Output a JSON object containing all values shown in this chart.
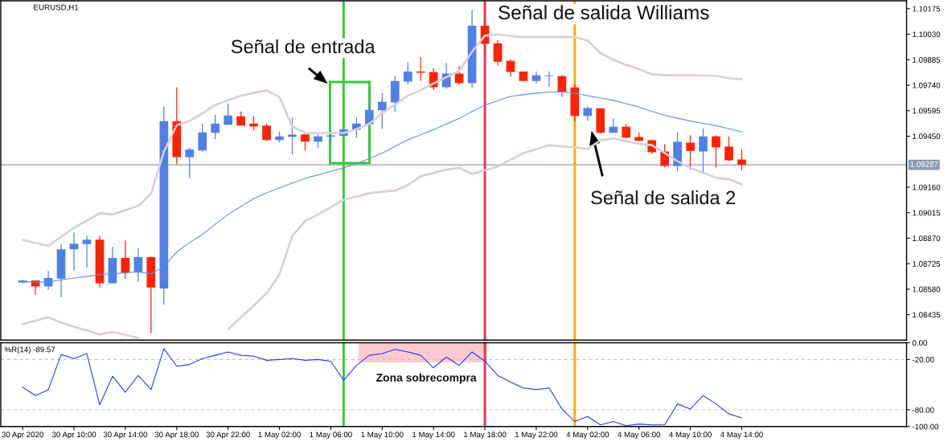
{
  "chart_data": [
    {
      "type": "candlestick",
      "title": "EURUSD,H1",
      "categories": [
        null,
        null,
        null,
        null,
        null,
        null,
        null,
        null,
        null,
        null,
        null,
        null,
        null,
        null,
        null,
        null,
        null,
        null,
        null,
        null,
        null,
        null,
        null,
        null,
        null,
        null,
        null,
        null,
        null,
        null,
        null,
        null,
        null,
        null,
        null,
        null,
        null,
        null,
        null,
        null,
        null,
        null,
        null,
        null,
        null,
        null,
        null,
        null,
        null,
        null,
        null,
        null,
        null,
        null,
        null,
        null,
        null
      ],
      "ohlc": [
        [
          1.08618,
          1.08633,
          1.08615,
          1.0863
        ],
        [
          1.0863,
          1.0863,
          1.08549,
          1.08595
        ],
        [
          1.08595,
          1.08683,
          1.08577,
          1.08643
        ],
        [
          1.0864,
          1.08835,
          1.08534,
          1.08807
        ],
        [
          1.08807,
          1.08903,
          1.08686,
          1.08839
        ],
        [
          1.08836,
          1.08883,
          1.08704,
          1.08862
        ],
        [
          1.08862,
          1.08883,
          1.0859,
          1.08613
        ],
        [
          1.08613,
          1.08822,
          1.08613,
          1.08757
        ],
        [
          1.08757,
          1.08857,
          1.0864,
          1.08674
        ],
        [
          1.08678,
          1.08812,
          1.08622,
          1.08762
        ],
        [
          1.08762,
          1.08766,
          1.08329,
          1.0859
        ],
        [
          1.08584,
          1.09618,
          1.08492,
          1.09536
        ],
        [
          1.09536,
          1.09727,
          1.0929,
          1.09331
        ],
        [
          1.09331,
          1.09384,
          1.0921,
          1.09374
        ],
        [
          1.09369,
          1.09522,
          1.0936,
          1.09472
        ],
        [
          1.09469,
          1.09572,
          1.09433,
          1.09522
        ],
        [
          1.09515,
          1.09636,
          1.09515,
          1.09568
        ],
        [
          1.09563,
          1.09591,
          1.0951,
          1.0951
        ],
        [
          1.09522,
          1.09563,
          1.09483,
          1.09506
        ],
        [
          1.0951,
          1.09522,
          1.09424,
          1.09428
        ],
        [
          1.09428,
          1.09477,
          1.09415,
          1.09449
        ],
        [
          1.09446,
          1.09559,
          1.09346,
          1.09459
        ],
        [
          1.0946,
          1.09472,
          1.09369,
          1.09419
        ],
        [
          1.09419,
          1.0946,
          1.09383,
          1.09449
        ],
        [
          1.09448,
          1.0946,
          1.09415,
          1.09455
        ],
        [
          1.09452,
          1.09493,
          1.09449,
          1.09489
        ],
        [
          1.09487,
          1.09556,
          1.09442,
          1.09522
        ],
        [
          1.09519,
          1.09645,
          1.09518,
          1.096
        ],
        [
          1.09597,
          1.09695,
          1.09492,
          1.09645
        ],
        [
          1.09642,
          1.09794,
          1.09588,
          1.09764
        ],
        [
          1.09761,
          1.0987,
          1.09744,
          1.09818
        ],
        [
          1.09818,
          1.099,
          1.09765,
          1.09811
        ],
        [
          1.09814,
          1.09837,
          1.09711,
          1.09729
        ],
        [
          1.09729,
          1.09867,
          1.0972,
          1.09806
        ],
        [
          1.09806,
          1.0985,
          1.09742,
          1.09752
        ],
        [
          1.09752,
          1.10169,
          1.09724,
          1.10078
        ],
        [
          1.10078,
          1.10082,
          1.09975,
          1.09975
        ],
        [
          1.09978,
          1.09996,
          1.09852,
          1.09874
        ],
        [
          1.09878,
          1.09888,
          1.09788,
          1.09815
        ],
        [
          1.09818,
          1.09818,
          1.09761,
          1.09764
        ],
        [
          1.09764,
          1.09818,
          1.09752,
          1.09796
        ],
        [
          1.09791,
          1.09818,
          1.09733,
          1.09796
        ],
        [
          1.09791,
          1.09796,
          1.09674,
          1.09704
        ],
        [
          1.09727,
          1.09745,
          1.09533,
          1.09565
        ],
        [
          1.09565,
          1.09619,
          1.09537,
          1.0961
        ],
        [
          1.09609,
          1.09609,
          1.09465,
          1.09469
        ],
        [
          1.09469,
          1.09551,
          1.09469,
          1.09504
        ],
        [
          1.09504,
          1.09521,
          1.09437,
          1.09442
        ],
        [
          1.09445,
          1.09472,
          1.09421,
          1.09424
        ],
        [
          1.09427,
          1.09431,
          1.09349,
          1.09358
        ],
        [
          1.09363,
          1.09404,
          1.09273,
          1.09281
        ],
        [
          1.09281,
          1.09472,
          1.09251,
          1.09418
        ],
        [
          1.09413,
          1.09454,
          1.0926,
          1.09367
        ],
        [
          1.09363,
          1.09495,
          1.09237,
          1.09449
        ],
        [
          1.09449,
          1.09454,
          1.09272,
          1.09386
        ],
        [
          1.0939,
          1.09449,
          1.09308,
          1.09313
        ],
        [
          1.09317,
          1.09377,
          1.09255,
          1.09287
        ]
      ],
      "colors": [
        "#4f80e8",
        "#ff2200",
        "#4f80e8",
        "#4f80e8",
        "#4f80e8",
        "#4f80e8",
        "#ff2200",
        "#4f80e8",
        "#ff2200",
        "#4f80e8",
        "#ff2200",
        "#4f80e8",
        "#ff2200",
        "#4f80e8",
        "#4f80e8",
        "#4f80e8",
        "#4f80e8",
        "#ff2200",
        "#ff2200",
        "#ff2200",
        "#4f80e8",
        "#4f80e8",
        "#ff2200",
        "#4f80e8",
        "#4f80e8",
        "#4f80e8",
        "#4f80e8",
        "#4f80e8",
        "#4f80e8",
        "#4f80e8",
        "#4f80e8",
        "#ff2200",
        "#ff2200",
        "#4f80e8",
        "#ff2200",
        "#4f80e8",
        "#ff2200",
        "#ff2200",
        "#ff2200",
        "#ff2200",
        "#4f80e8",
        "#4f80e8",
        "#ff2200",
        "#ff2200",
        "#4f80e8",
        "#ff2200",
        "#4f80e8",
        "#ff2200",
        "#ff2200",
        "#ff2200",
        "#ff2200",
        "#4f80e8",
        "#ff2200",
        "#4f80e8",
        "#ff2200",
        "#ff2200",
        "#ff2200"
      ],
      "series": [
        {
          "type": "line",
          "color": "#dacdda",
          "values": [
            1.0886,
            1.08843,
            1.08826,
            1.08878,
            1.08929,
            1.0897,
            1.09012,
            1.09005,
            1.09029,
            1.09053,
            1.09123,
            1.09361,
            1.09513,
            1.09536,
            1.0958,
            1.09627,
            1.09655,
            1.0968,
            1.09696,
            1.09711,
            1.09673,
            1.09506,
            1.09468,
            1.09468,
            1.09468,
            1.09468,
            1.0949,
            1.09521,
            1.09581,
            1.0963,
            1.0968,
            1.09711,
            1.0975,
            1.09786,
            1.09821,
            1.09931,
            1.10022,
            1.10029,
            1.1002,
            1.10014,
            1.10014,
            1.10014,
            1.10014,
            1.10014,
            1.09994,
            1.09923,
            1.09885,
            1.09855,
            1.09832,
            1.09802,
            1.09797,
            1.09797,
            1.09797,
            1.09795,
            1.09794,
            1.09779,
            1.09774
          ]
        },
        {
          "type": "line",
          "color": "#5b8fef",
          "values": [
            1.08622,
            1.08621,
            1.08621,
            1.08633,
            1.08643,
            1.08653,
            1.08663,
            1.08668,
            1.08673,
            1.08678,
            1.08668,
            1.08709,
            1.08792,
            1.08845,
            1.08891,
            1.0895,
            1.09005,
            1.0905,
            1.09096,
            1.09128,
            1.09156,
            1.09184,
            1.0921,
            1.0923,
            1.0925,
            1.0927,
            1.09293,
            1.09323,
            1.09354,
            1.09392,
            1.0943,
            1.09458,
            1.09487,
            1.0952,
            1.09551,
            1.0959,
            1.09627,
            1.09652,
            1.09676,
            1.09686,
            1.09695,
            1.097,
            1.09703,
            1.09693,
            1.0968,
            1.09667,
            1.09654,
            1.09635,
            1.09616,
            1.09592,
            1.09569,
            1.09552,
            1.09536,
            1.09523,
            1.0951,
            1.09492,
            1.09475
          ]
        },
        {
          "type": "line",
          "color": "#dacdda",
          "values": [
            1.08382,
            1.08401,
            1.0842,
            1.0839,
            1.08367,
            1.08345,
            1.08322,
            1.08337,
            1.0832,
            1.08303,
            null,
            null,
            null,
            null,
            null,
            null,
            1.08352,
            1.0842,
            1.08488,
            1.08557,
            1.08663,
            1.08883,
            1.08967,
            1.09005,
            1.09046,
            1.09088,
            1.09107,
            1.09126,
            1.09134,
            1.09141,
            1.09172,
            1.09222,
            1.09241,
            1.0926,
            1.0927,
            1.09235,
            1.09256,
            1.09278,
            1.09316,
            1.09354,
            1.09377,
            1.09399,
            1.09393,
            1.09387,
            1.09377,
            1.09427,
            1.09437,
            1.09422,
            1.09407,
            1.09399,
            1.09354,
            1.09308,
            1.0927,
            1.09242,
            1.09214,
            1.09205,
            1.09176
          ]
        }
      ],
      "ylim": [
        1.0829,
        1.1022
      ],
      "yticks": [
        1.08435,
        {
          "value": 1.0858,
          "label": "1.08580"
        },
        1.08725,
        {
          "value": 1.0887,
          "label": "1.08870"
        },
        1.09015,
        {
          "value": 1.0916,
          "label": "1.09160"
        },
        {
          "value": 1.0945,
          "label": "1.09450"
        },
        1.09595,
        {
          "value": 1.0974,
          "label": "1.09740"
        },
        1.09885,
        {
          "value": 1.1003,
          "label": "1.10030"
        },
        1.10175
      ],
      "tick_labels": "y",
      "ref_lines": [
        {
          "axis": "y",
          "value": 1.09287,
          "label": "1.09287",
          "color": "#8c9cae"
        }
      ],
      "annotations": [
        "Señal de salida Williams",
        "Señal de entrada",
        "Señal de salida 2"
      ]
    },
    {
      "type": "line",
      "title": "%R(14) -89.57",
      "categories": [
        "30 Apr 2020",
        null,
        null,
        null,
        "30 Apr 10:00",
        null,
        null,
        null,
        "30 Apr 14:00",
        null,
        null,
        null,
        "30 Apr 18:00",
        null,
        null,
        null,
        "30 Apr 22:00",
        null,
        null,
        null,
        "1 May 02:00",
        null,
        null,
        null,
        "1 May 06:00",
        null,
        null,
        null,
        "1 May 10:00",
        null,
        null,
        null,
        "1 May 14:00",
        null,
        null,
        null,
        "1 May 18:00",
        null,
        null,
        null,
        "1 May 22:00",
        null,
        null,
        null,
        "4 May 02:00",
        null,
        null,
        null,
        "4 May 06:00",
        null,
        null,
        null,
        "4 May 10:00",
        null,
        null,
        null,
        "4 May 14:00"
      ],
      "series": [
        {
          "color": "#1f3cff",
          "values": [
            -53,
            -63,
            -56,
            -14,
            -19,
            -13,
            -74,
            -40,
            -59,
            -39,
            -56,
            -7,
            -28,
            -26,
            -19,
            -15,
            -11,
            -15,
            -16,
            -21,
            -20,
            -19,
            -21,
            -20,
            -22,
            -45,
            -27,
            -15,
            -13,
            -8,
            -11,
            -15,
            -30,
            -17,
            -27,
            -11,
            -22,
            -39,
            -47,
            -54,
            -56,
            -54,
            -79,
            -94,
            -88,
            -98,
            -94,
            -99,
            -97,
            -98,
            -98,
            -73,
            -79,
            -63,
            -73,
            -85,
            -89.57
          ]
        }
      ],
      "ylim": [
        -100,
        0
      ],
      "yticks": [
        {
          "value": 0,
          "label": "0.00"
        },
        {
          "value": -20,
          "label": "-20.00"
        },
        {
          "value": -80,
          "label": "-80.00"
        },
        {
          "value": -100,
          "label": "-100.00"
        }
      ],
      "ref_lines": [
        {
          "axis": "y",
          "value": -20,
          "color": "#c8c8c8",
          "line_style": "dashed"
        },
        {
          "axis": "y",
          "value": -80,
          "color": "#c8c8c8",
          "line_style": "dashed"
        },
        {
          "axis": "x",
          "value": "1 May 18:00",
          "color": "#e8304a"
        }
      ],
      "annotations": [
        "Zona sobrecompra"
      ]
    }
  ]
}
